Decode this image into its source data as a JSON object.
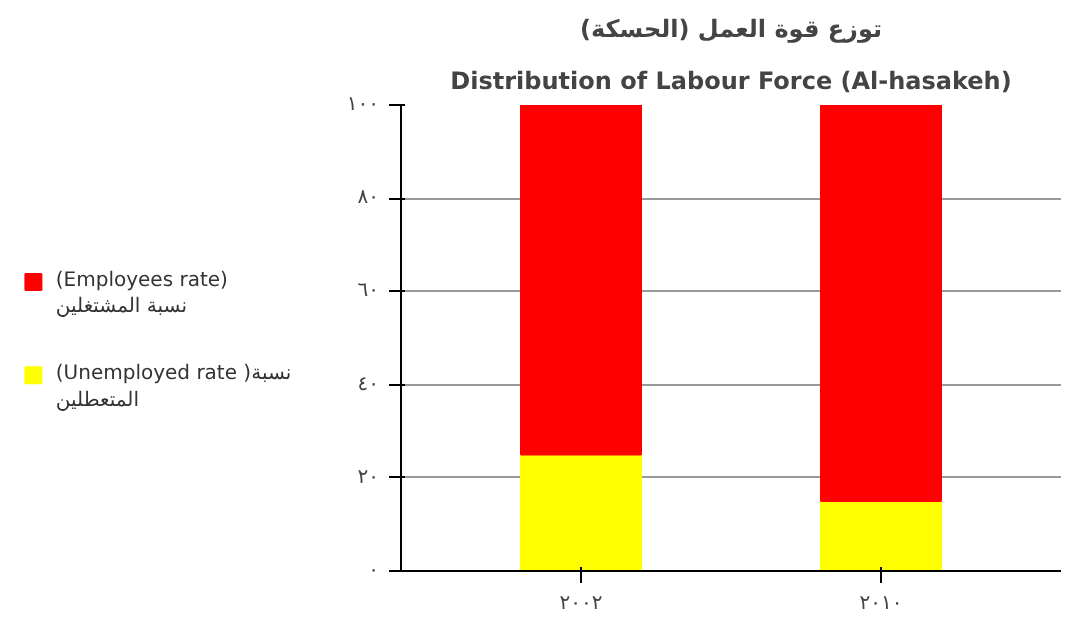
{
  "chart_data": {
    "type": "bar",
    "stacked": true,
    "title": "توزع قوة العمل (الحسكة)",
    "subtitle": "Distribution of Labour Force (Al-hasakeh)",
    "categories": [
      "٢٠٠٢",
      "٢٠١٠"
    ],
    "series": [
      {
        "name": "(Unemployed rate )نسبة\nالمتعطلين",
        "color": "#ffff00",
        "values": [
          25,
          15
        ]
      },
      {
        "name": "(Employees rate)\nنسبة المشتغلين",
        "color": "#ff0000",
        "values": [
          75,
          85
        ]
      }
    ],
    "ylim": [
      0,
      100
    ],
    "yticks": [
      {
        "value": 0,
        "label": "٠"
      },
      {
        "value": 20,
        "label": "٢٠"
      },
      {
        "value": 40,
        "label": "٤٠"
      },
      {
        "value": 60,
        "label": "٦٠"
      },
      {
        "value": 80,
        "label": "٨٠"
      },
      {
        "value": 100,
        "label": "١٠٠"
      }
    ],
    "grid": "y",
    "legend": "left"
  }
}
